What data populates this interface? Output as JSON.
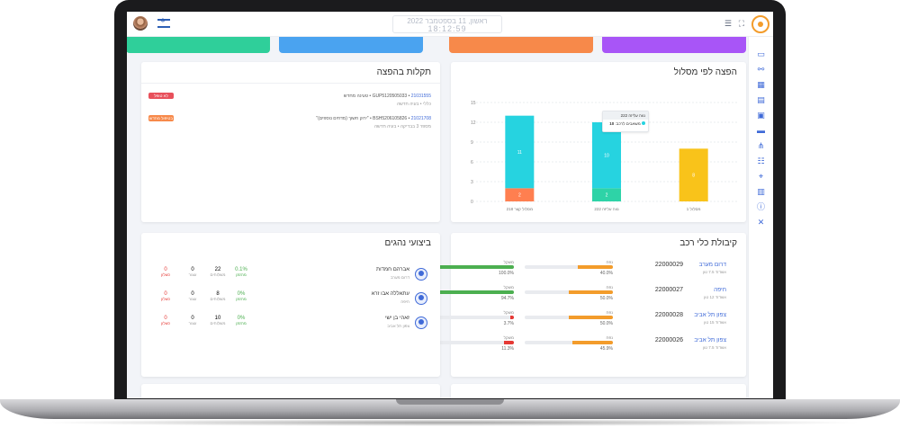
{
  "header": {
    "clock_line1": "ראשון, 11 בספטמבר 2022",
    "clock_time": "18:12:59",
    "icons": [
      "menu-icon",
      "fullscreen-icon",
      "flag-israel",
      "user-avatar"
    ]
  },
  "sidebar": {
    "icons": [
      "monitor-icon",
      "share-icon",
      "calendar-icon",
      "book-icon",
      "bus-icon",
      "bus-icon",
      "route-icon",
      "people-icon",
      "map-pin-icon",
      "document-icon",
      "info-icon",
      "tools-icon"
    ]
  },
  "stats_colors": [
    "#a855f7",
    "#f7894a",
    "#4aa3f0",
    "#2fcf9a"
  ],
  "route_chart": {
    "title": "הפצה לפי מסלול",
    "tooltip_title": "נווה עליזה 222",
    "tooltip_series": "משאבים לרכב",
    "tooltip_value": "10"
  },
  "chart_data": {
    "type": "bar",
    "stacked": true,
    "categories": [
      "מסלול קצר 218",
      "נווה עליזה 222",
      "מסלול 1"
    ],
    "series": [
      {
        "name": "",
        "color": "#ff7f50",
        "values": [
          2,
          0,
          0
        ]
      },
      {
        "name": "",
        "color": "#2ed3a7",
        "values": [
          0,
          2,
          0
        ]
      },
      {
        "name": "",
        "color": "#26d3e0",
        "values": [
          11,
          10,
          0
        ]
      },
      {
        "name": "",
        "color": "#f9c31a",
        "values": [
          0,
          0,
          8
        ]
      }
    ],
    "data_labels": [
      [
        "2",
        "11"
      ],
      [
        "2",
        "10"
      ],
      [
        "8"
      ]
    ],
    "yticks": [
      0,
      3,
      6,
      9,
      12,
      15
    ],
    "ylim": [
      0,
      15
    ],
    "xlabel": "",
    "ylabel": ""
  },
  "faults": {
    "title": "תקלות בהפצה",
    "items": [
      {
        "id": "21031555",
        "code": "GUP5120505033",
        "text": "טעינה מחדש",
        "sub1": "כללי",
        "sub2": "בעיה חדשה",
        "badge": "לא טופל",
        "badge_color": "#e8505b"
      },
      {
        "id": "21021708",
        "code": "BSH5206105826",
        "text": "\"ירוק חשוך (מדחים נוספים)\"",
        "sub1": "מספר 3 בבדיקה",
        "sub2": "בעיה חדשה",
        "badge": "בטיפול מחדש",
        "badge_color": "#f7894a"
      }
    ]
  },
  "drivers": {
    "title": "ביצועי נהגים",
    "rows": [
      {
        "name": "אברהם חמדות",
        "sub": "דרום מערב",
        "pct": "0.1%",
        "pct_cap": "מהזמן",
        "s1": "22",
        "s1_cap": "משלוחים",
        "s2": "0",
        "s2_cap": "עצור",
        "s3": "0",
        "s3_cap": "כשלון"
      },
      {
        "name": "עתאללה אבו זרא",
        "sub": "חיפה",
        "pct": "0%",
        "pct_cap": "מהזמן",
        "s1": "8",
        "s1_cap": "משלוחים",
        "s2": "0",
        "s2_cap": "עצור",
        "s3": "0",
        "s3_cap": "כשלון"
      },
      {
        "name": "זאהי בן ישי",
        "sub": "צפון תל אביב",
        "pct": "0%",
        "pct_cap": "מהזמן",
        "s1": "10",
        "s1_cap": "משלוחים",
        "s2": "0",
        "s2_cap": "עצור",
        "s3": "0",
        "s3_cap": "כשלון"
      }
    ]
  },
  "vehicles": {
    "title": "קיבולת כלי רכב",
    "rows": [
      {
        "name": "דרום מערב",
        "sub": "אשדוד 7.5 טון",
        "number": "22000029",
        "vol_label": "נפח",
        "vol_val": "40.0%",
        "vol": 0.4,
        "vol_color": "#f39c2b",
        "weight_label": "משקל",
        "weight_val": "100.0%",
        "weight": 1.0,
        "weight_color": "#4caf50"
      },
      {
        "name": "חיפה",
        "sub": "אשדוד 12 טון",
        "number": "22000027",
        "vol_label": "נפח",
        "vol_val": "50.0%",
        "vol": 0.5,
        "vol_color": "#f39c2b",
        "weight_label": "משקל",
        "weight_val": "94.7%",
        "weight": 0.947,
        "weight_color": "#4caf50"
      },
      {
        "name": "צפון תל אביב",
        "sub": "אשדוד 15 טון",
        "number": "22000028",
        "vol_label": "נפח",
        "vol_val": "50.0%",
        "vol": 0.5,
        "vol_color": "#f39c2b",
        "weight_label": "משקל",
        "weight_val": "3.7%",
        "weight": 0.037,
        "weight_color": "#e53935"
      },
      {
        "name": "צפון תל אביב",
        "sub": "אשדוד 7.5 טון",
        "number": "22000026",
        "vol_label": "נפח",
        "vol_val": "45.9%",
        "vol": 0.459,
        "vol_color": "#f39c2b",
        "weight_label": "משקל",
        "weight_val": "11.3%",
        "weight": 0.113,
        "weight_color": "#e53935"
      }
    ]
  }
}
